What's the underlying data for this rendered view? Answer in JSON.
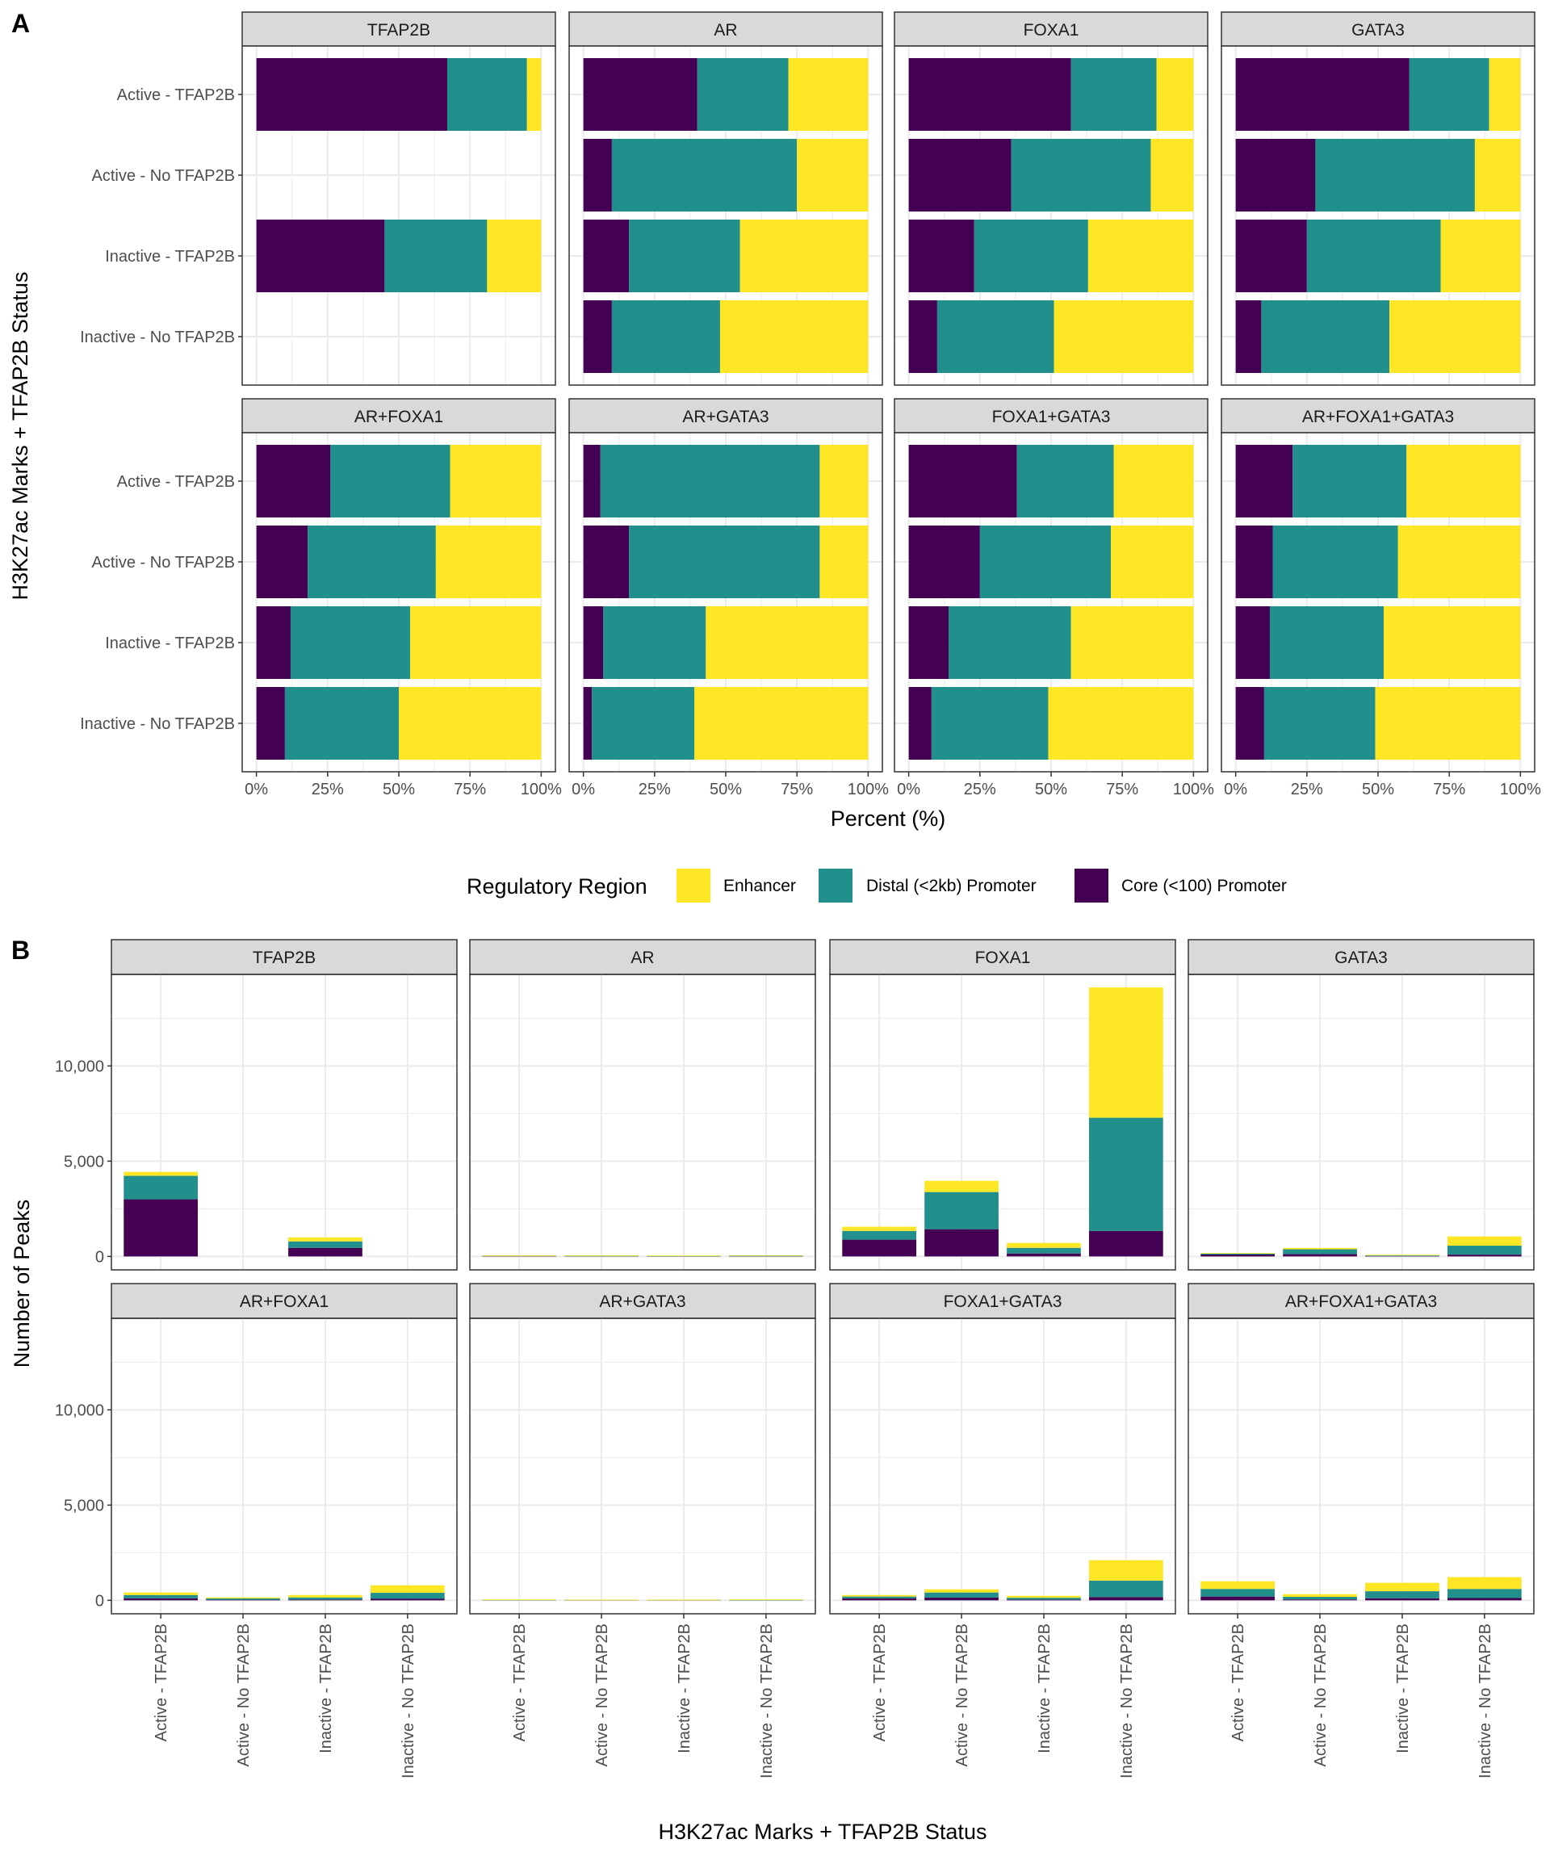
{
  "colors": {
    "core": "#440154",
    "distal": "#21908C",
    "enhancer": "#FDE725",
    "strip_fill": "#D9D9D9",
    "grid": "#EBEBEB"
  },
  "legend": {
    "title": "Regulatory Region",
    "items": [
      {
        "key": "enhancer",
        "label": "Enhancer"
      },
      {
        "key": "distal",
        "label": "Distal (<2kb) Promoter"
      },
      {
        "key": "core",
        "label": "Core (<100) Promoter"
      }
    ]
  },
  "chart_data": [
    {
      "panel_label": "A",
      "type": "bar",
      "orientation": "horizontal",
      "stacked": true,
      "xlabel": "Percent (%)",
      "ylabel": "H3K27ac Marks + TFAP2B Status",
      "xlim": [
        0,
        100
      ],
      "xticks": [
        "0%",
        "25%",
        "50%",
        "75%",
        "100%"
      ],
      "grid": true,
      "categories": [
        "Active - TFAP2B",
        "Active - No TFAP2B",
        "Inactive - TFAP2B",
        "Inactive - No TFAP2B"
      ],
      "facets": [
        {
          "name": "TFAP2B",
          "core": [
            67,
            0,
            45,
            0
          ],
          "distal": [
            28,
            0,
            36,
            0
          ],
          "enhancer": [
            5,
            0,
            19,
            0
          ]
        },
        {
          "name": "AR",
          "core": [
            40,
            10,
            16,
            10
          ],
          "distal": [
            32,
            65,
            39,
            38
          ],
          "enhancer": [
            28,
            25,
            45,
            52
          ]
        },
        {
          "name": "FOXA1",
          "core": [
            57,
            36,
            23,
            10
          ],
          "distal": [
            30,
            49,
            40,
            41
          ],
          "enhancer": [
            13,
            15,
            37,
            49
          ]
        },
        {
          "name": "GATA3",
          "core": [
            61,
            28,
            25,
            9
          ],
          "distal": [
            28,
            56,
            47,
            45
          ],
          "enhancer": [
            11,
            16,
            28,
            46
          ]
        },
        {
          "name": "AR+FOXA1",
          "core": [
            26,
            18,
            12,
            10
          ],
          "distal": [
            42,
            45,
            42,
            40
          ],
          "enhancer": [
            32,
            37,
            46,
            50
          ]
        },
        {
          "name": "AR+GATA3",
          "core": [
            6,
            16,
            7,
            3
          ],
          "distal": [
            77,
            67,
            36,
            36
          ],
          "enhancer": [
            17,
            17,
            57,
            61
          ]
        },
        {
          "name": "FOXA1+GATA3",
          "core": [
            38,
            25,
            14,
            8
          ],
          "distal": [
            34,
            46,
            43,
            41
          ],
          "enhancer": [
            28,
            29,
            43,
            51
          ]
        },
        {
          "name": "AR+FOXA1+GATA3",
          "core": [
            20,
            13,
            12,
            10
          ],
          "distal": [
            40,
            44,
            40,
            39
          ],
          "enhancer": [
            40,
            43,
            48,
            51
          ]
        }
      ]
    },
    {
      "panel_label": "B",
      "type": "bar",
      "orientation": "vertical",
      "stacked": true,
      "xlabel": "H3K27ac Marks + TFAP2B Status",
      "ylabel": "Number of Peaks",
      "ylim": [
        0,
        14100
      ],
      "yticks": [
        0,
        5000,
        10000
      ],
      "ytick_labels": [
        "0",
        "5,000",
        "10,000"
      ],
      "grid": true,
      "categories": [
        "Active - TFAP2B",
        "Active - No TFAP2B",
        "Inactive - TFAP2B",
        "Inactive - No TFAP2B"
      ],
      "facets": [
        {
          "name": "TFAP2B",
          "core": [
            3000,
            0,
            450,
            0
          ],
          "distal": [
            1230,
            0,
            340,
            0
          ],
          "enhancer": [
            210,
            0,
            210,
            0
          ]
        },
        {
          "name": "AR",
          "core": [
            12,
            3,
            5,
            6
          ],
          "distal": [
            10,
            20,
            12,
            23
          ],
          "enhancer": [
            8,
            7,
            13,
            31
          ]
        },
        {
          "name": "FOXA1",
          "core": [
            880,
            1430,
            155,
            1340
          ],
          "distal": [
            460,
            1950,
            295,
            5940
          ],
          "enhancer": [
            220,
            590,
            260,
            6840
          ]
        },
        {
          "name": "GATA3",
          "core": [
            100,
            125,
            18,
            95
          ],
          "distal": [
            45,
            250,
            33,
            470
          ],
          "enhancer": [
            15,
            70,
            19,
            485
          ]
        },
        {
          "name": "AR+FOXA1",
          "core": [
            107,
            28,
            34,
            79
          ],
          "distal": [
            172,
            70,
            118,
            316
          ],
          "enhancer": [
            131,
            57,
            128,
            395
          ]
        },
        {
          "name": "AR+GATA3",
          "core": [
            1,
            1,
            1,
            1
          ],
          "distal": [
            9,
            4,
            5,
            12
          ],
          "enhancer": [
            2,
            1,
            8,
            20
          ]
        },
        {
          "name": "FOXA1+GATA3",
          "core": [
            106,
            145,
            34,
            170
          ],
          "distal": [
            95,
            267,
            103,
            865
          ],
          "enhancer": [
            79,
            168,
            103,
            1075
          ]
        },
        {
          "name": "AR+FOXA1+GATA3",
          "core": [
            200,
            42,
            110,
            122
          ],
          "distal": [
            400,
            143,
            368,
            476
          ],
          "enhancer": [
            400,
            140,
            442,
            622
          ]
        }
      ]
    }
  ]
}
